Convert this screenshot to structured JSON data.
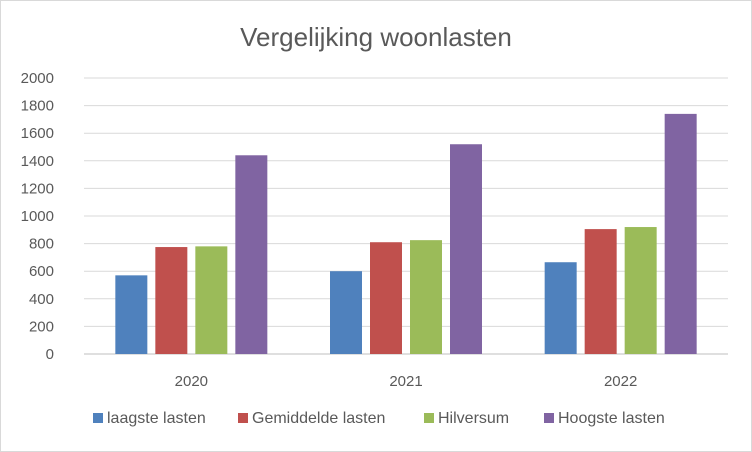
{
  "chart_data": {
    "type": "bar",
    "title": "Vergelijking woonlasten",
    "xlabel": "",
    "ylabel": "",
    "categories": [
      "2020",
      "2021",
      "2022"
    ],
    "ylim": [
      0,
      2000
    ],
    "yticks": [
      "0",
      "200",
      "400",
      "600",
      "800",
      "1000",
      "1200",
      "1400",
      "1600",
      "1800",
      "2000"
    ],
    "grid": true,
    "legend_position": "bottom",
    "series": [
      {
        "name": "laagste lasten",
        "color": "#4f81bd",
        "values": [
          570,
          600,
          665
        ]
      },
      {
        "name": "Gemiddelde lasten",
        "color": "#c0504d",
        "values": [
          775,
          810,
          905
        ]
      },
      {
        "name": "Hilversum",
        "color": "#9bbb59",
        "values": [
          780,
          825,
          920
        ]
      },
      {
        "name": "Hoogste lasten",
        "color": "#8064a2",
        "values": [
          1440,
          1520,
          1740
        ]
      }
    ]
  }
}
